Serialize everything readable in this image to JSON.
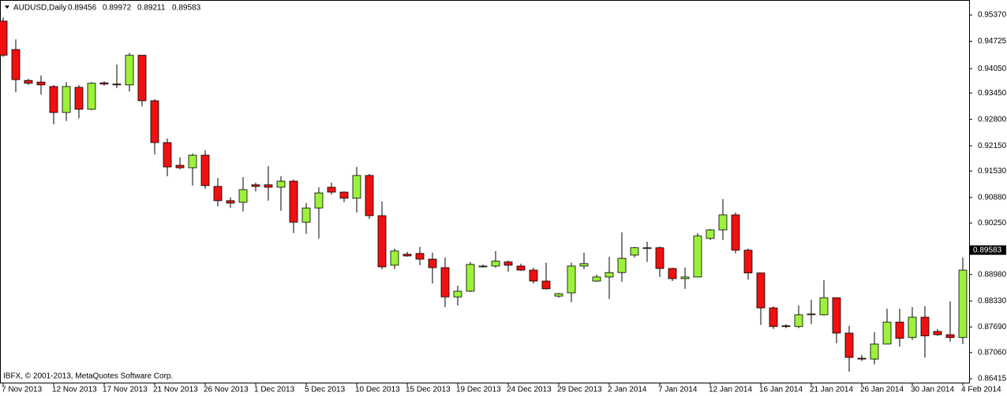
{
  "chart_data": {
    "type": "candlestick",
    "title": "AUDUSD,Daily",
    "header_values": [
      0.89456,
      0.89972,
      0.89211,
      0.89583
    ],
    "footer": "IBFX, © 2001-2013, MetaQuotes Software Corp.",
    "last_price": 0.89583,
    "up_color": "#9cf13a",
    "down_color": "#f01010",
    "categories": [
      "7 Nov 2013",
      null,
      null,
      null,
      "12 Nov 2013",
      null,
      null,
      null,
      "17 Nov 2013",
      null,
      null,
      null,
      "21 Nov 2013",
      null,
      null,
      null,
      "26 Nov 2013",
      null,
      null,
      null,
      "1 Dec 2013",
      null,
      null,
      null,
      "5 Dec 2013",
      null,
      null,
      null,
      "10 Dec 2013",
      null,
      null,
      null,
      "15 Dec 2013",
      null,
      null,
      null,
      "19 Dec 2013",
      null,
      null,
      null,
      "24 Dec 2013",
      null,
      null,
      null,
      "29 Dec 2013",
      null,
      null,
      null,
      "2 Jan 2014",
      null,
      null,
      null,
      "7 Jan 2014",
      null,
      null,
      null,
      "12 Jan 2014",
      null,
      null,
      null,
      "16 Jan 2014",
      null,
      null,
      null,
      "21 Jan 2014",
      null,
      null,
      null,
      "26 Jan 2014",
      null,
      null,
      null,
      "30 Jan 2014",
      null,
      null,
      null,
      "4 Feb 2014"
    ],
    "open": [
      0.9522,
      0.9452,
      0.9376,
      0.9372,
      0.9361,
      0.9297,
      0.9359,
      0.9305,
      0.937,
      0.9367,
      0.9365,
      0.9438,
      0.9326,
      0.9223,
      0.9167,
      0.9161,
      0.9192,
      0.9115,
      0.908,
      0.9076,
      0.9119,
      0.9119,
      0.9113,
      0.9128,
      0.9027,
      0.9062,
      0.9113,
      0.9101,
      0.9086,
      0.9142,
      0.9043,
      0.8921,
      0.8948,
      0.895,
      0.8936,
      0.8915,
      0.8843,
      0.8857,
      0.8917,
      0.8919,
      0.8929,
      0.8919,
      0.8909,
      0.8882,
      0.8845,
      0.8853,
      0.8919,
      0.8882,
      0.8892,
      0.8903,
      0.8946,
      0.8962,
      0.8964,
      0.8913,
      0.8888,
      0.8892,
      0.8987,
      0.9008,
      0.9045,
      0.8958,
      0.8902,
      0.8816,
      0.8772,
      0.877,
      0.8799,
      0.8799,
      0.8841,
      0.8754,
      0.8692,
      0.869,
      0.8727,
      0.8781,
      0.8743,
      0.8793,
      0.8758,
      0.875,
      0.8743
    ],
    "high": [
      0.9531,
      0.9477,
      0.938,
      0.9388,
      0.9365,
      0.9372,
      0.9365,
      0.9372,
      0.9374,
      0.9415,
      0.9444,
      0.9438,
      0.933,
      0.9233,
      0.9186,
      0.9196,
      0.9204,
      0.9136,
      0.9088,
      0.9138,
      0.9124,
      0.9165,
      0.914,
      0.9132,
      0.9074,
      0.9113,
      0.9124,
      0.9103,
      0.9163,
      0.9146,
      0.9078,
      0.8962,
      0.8954,
      0.8966,
      0.8952,
      0.894,
      0.8871,
      0.8929,
      0.8923,
      0.8956,
      0.8933,
      0.8925,
      0.8915,
      0.8927,
      0.8853,
      0.8927,
      0.8952,
      0.8898,
      0.8942,
      0.9002,
      0.8966,
      0.8979,
      0.8967,
      0.8915,
      0.8915,
      0.9,
      0.901,
      0.9084,
      0.9051,
      0.8962,
      0.8902,
      0.882,
      0.8776,
      0.8822,
      0.8836,
      0.8884,
      0.8841,
      0.8772,
      0.87,
      0.8756,
      0.8814,
      0.8814,
      0.8818,
      0.882,
      0.8764,
      0.8832,
      0.894
    ],
    "low": [
      0.9434,
      0.9347,
      0.9365,
      0.9341,
      0.9268,
      0.9276,
      0.9283,
      0.9303,
      0.9363,
      0.9357,
      0.9349,
      0.9312,
      0.9194,
      0.914,
      0.9157,
      0.9117,
      0.9109,
      0.9066,
      0.9062,
      0.9053,
      0.9103,
      0.908,
      0.9055,
      0.9,
      0.8998,
      0.8987,
      0.9095,
      0.9076,
      0.9051,
      0.9035,
      0.8911,
      0.8911,
      0.8942,
      0.8921,
      0.8876,
      0.8818,
      0.8822,
      0.8855,
      0.8915,
      0.8915,
      0.8905,
      0.8907,
      0.8876,
      0.8861,
      0.8841,
      0.883,
      0.8911,
      0.888,
      0.8838,
      0.888,
      0.894,
      0.8929,
      0.8892,
      0.8882,
      0.8863,
      0.8892,
      0.8983,
      0.8983,
      0.895,
      0.8886,
      0.8774,
      0.8764,
      0.8766,
      0.8766,
      0.8776,
      0.8797,
      0.8729,
      0.8659,
      0.8685,
      0.8677,
      0.8727,
      0.8721,
      0.8737,
      0.8694,
      0.8747,
      0.8733,
      0.8727
    ],
    "close": [
      0.9438,
      0.9378,
      0.9369,
      0.9365,
      0.9297,
      0.9361,
      0.9305,
      0.9369,
      0.9367,
      0.9365,
      0.9438,
      0.9326,
      0.9223,
      0.9163,
      0.9161,
      0.9192,
      0.9117,
      0.908,
      0.9074,
      0.9107,
      0.9115,
      0.9113,
      0.9128,
      0.9027,
      0.9062,
      0.9099,
      0.9101,
      0.9086,
      0.9142,
      0.9043,
      0.8917,
      0.8956,
      0.8944,
      0.8936,
      0.8915,
      0.8843,
      0.8857,
      0.8923,
      0.8919,
      0.8931,
      0.8921,
      0.8909,
      0.8882,
      0.8863,
      0.8851,
      0.8919,
      0.8925,
      0.8892,
      0.8903,
      0.8938,
      0.8964,
      0.8964,
      0.8913,
      0.8888,
      0.8892,
      0.8993,
      0.9008,
      0.9045,
      0.8958,
      0.8902,
      0.8816,
      0.877,
      0.877,
      0.8799,
      0.8801,
      0.8841,
      0.8754,
      0.8694,
      0.869,
      0.8727,
      0.8781,
      0.8741,
      0.8793,
      0.8747,
      0.875,
      0.8743,
      0.8909
    ],
    "ylim": [
      0.8632,
      0.9574
    ],
    "yticks": [
      {
        "value": 0.9537,
        "label": "0.95370"
      },
      {
        "value": 0.94725,
        "label": "0.94725"
      },
      {
        "value": 0.9405,
        "label": "0.94050"
      },
      {
        "value": 0.9345,
        "label": "0.93450"
      },
      {
        "value": 0.928,
        "label": "0.92800"
      },
      {
        "value": 0.9215,
        "label": "0.92150"
      },
      {
        "value": 0.9153,
        "label": "0.91530"
      },
      {
        "value": 0.9088,
        "label": "0.90880"
      },
      {
        "value": 0.9025,
        "label": "0.90250"
      },
      {
        "value": 0.8898,
        "label": "0.88980"
      },
      {
        "value": 0.8833,
        "label": "0.88330"
      },
      {
        "value": 0.8769,
        "label": "0.87690"
      },
      {
        "value": 0.8706,
        "label": "0.87060"
      },
      {
        "value": 0.86415,
        "label": "0.86415"
      }
    ]
  }
}
